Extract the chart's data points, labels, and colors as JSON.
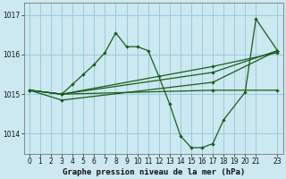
{
  "bg_color": "#cce8f0",
  "grid_color": "#99ccdd",
  "line_color": "#1a5c1a",
  "title": "Graphe pression niveau de la mer (hPa)",
  "xlim": [
    -0.5,
    23.5
  ],
  "ylim": [
    1013.5,
    1017.3
  ],
  "yticks": [
    1014,
    1015,
    1016,
    1017
  ],
  "xticks": [
    0,
    1,
    2,
    3,
    4,
    5,
    6,
    7,
    8,
    9,
    10,
    11,
    12,
    13,
    14,
    15,
    16,
    17,
    18,
    19,
    20,
    21,
    23
  ],
  "series1": {
    "x": [
      0,
      3,
      4,
      5,
      6,
      7,
      8,
      9,
      10,
      11,
      12,
      13,
      14,
      15,
      16,
      17,
      18,
      20,
      21,
      23
    ],
    "y": [
      1015.1,
      1015.0,
      1015.25,
      1015.5,
      1015.75,
      1016.05,
      1016.55,
      1016.2,
      1016.2,
      1016.1,
      1015.45,
      1014.75,
      1013.95,
      1013.65,
      1013.65,
      1013.75,
      1014.35,
      1015.05,
      1016.9,
      1016.1
    ]
  },
  "series2": {
    "x": [
      0,
      3,
      17,
      23
    ],
    "y": [
      1015.1,
      1015.0,
      1015.1,
      1015.1
    ]
  },
  "series3": {
    "x": [
      0,
      3,
      17,
      23
    ],
    "y": [
      1015.1,
      1014.85,
      1015.3,
      1016.1
    ]
  },
  "series4": {
    "x": [
      0,
      3,
      17,
      23
    ],
    "y": [
      1015.1,
      1015.0,
      1015.55,
      1016.1
    ]
  },
  "series5": {
    "x": [
      0,
      3,
      17,
      23
    ],
    "y": [
      1015.1,
      1015.0,
      1015.7,
      1016.05
    ]
  }
}
